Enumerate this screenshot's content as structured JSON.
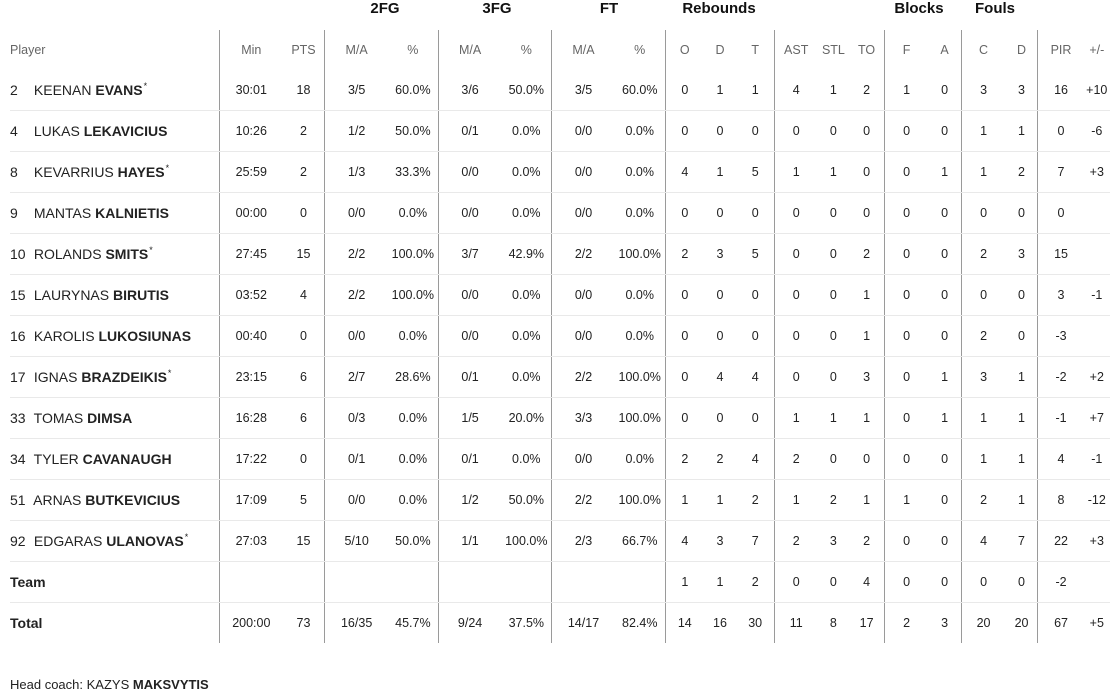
{
  "group_headers": {
    "fg2": "2FG",
    "fg3": "3FG",
    "ft": "FT",
    "rebounds": "Rebounds",
    "blocks": "Blocks",
    "fouls": "Fouls"
  },
  "columns": {
    "player": "Player",
    "min": "Min",
    "pts": "PTS",
    "fg2_ma": "M/A",
    "fg2_pct": "%",
    "fg3_ma": "M/A",
    "fg3_pct": "%",
    "ft_ma": "M/A",
    "ft_pct": "%",
    "reb_o": "O",
    "reb_d": "D",
    "reb_t": "T",
    "ast": "AST",
    "stl": "STL",
    "to": "TO",
    "blk_f": "F",
    "blk_a": "A",
    "foul_c": "C",
    "foul_d": "D",
    "pir": "PIR",
    "pm": "+/-"
  },
  "players": [
    {
      "num": "2",
      "first": "KEENAN",
      "last": "EVANS",
      "star": "*",
      "stats": [
        "30:01",
        "18",
        "3/5",
        "60.0%",
        "3/6",
        "50.0%",
        "3/5",
        "60.0%",
        "0",
        "1",
        "1",
        "4",
        "1",
        "2",
        "1",
        "0",
        "3",
        "3",
        "16",
        "+10"
      ]
    },
    {
      "num": "4",
      "first": "LUKAS",
      "last": "LEKAVICIUS",
      "star": "",
      "stats": [
        "10:26",
        "2",
        "1/2",
        "50.0%",
        "0/1",
        "0.0%",
        "0/0",
        "0.0%",
        "0",
        "0",
        "0",
        "0",
        "0",
        "0",
        "0",
        "0",
        "1",
        "1",
        "0",
        "-6"
      ]
    },
    {
      "num": "8",
      "first": "KEVARRIUS",
      "last": "HAYES",
      "star": "*",
      "stats": [
        "25:59",
        "2",
        "1/3",
        "33.3%",
        "0/0",
        "0.0%",
        "0/0",
        "0.0%",
        "4",
        "1",
        "5",
        "1",
        "1",
        "0",
        "0",
        "1",
        "1",
        "2",
        "7",
        "+3"
      ]
    },
    {
      "num": "9",
      "first": "MANTAS",
      "last": "KALNIETIS",
      "star": "",
      "stats": [
        "00:00",
        "0",
        "0/0",
        "0.0%",
        "0/0",
        "0.0%",
        "0/0",
        "0.0%",
        "0",
        "0",
        "0",
        "0",
        "0",
        "0",
        "0",
        "0",
        "0",
        "0",
        "0",
        ""
      ]
    },
    {
      "num": "10",
      "first": "ROLANDS",
      "last": "SMITS",
      "star": "*",
      "stats": [
        "27:45",
        "15",
        "2/2",
        "100.0%",
        "3/7",
        "42.9%",
        "2/2",
        "100.0%",
        "2",
        "3",
        "5",
        "0",
        "0",
        "2",
        "0",
        "0",
        "2",
        "3",
        "15",
        ""
      ]
    },
    {
      "num": "15",
      "first": "LAURYNAS",
      "last": "BIRUTIS",
      "star": "",
      "stats": [
        "03:52",
        "4",
        "2/2",
        "100.0%",
        "0/0",
        "0.0%",
        "0/0",
        "0.0%",
        "0",
        "0",
        "0",
        "0",
        "0",
        "1",
        "0",
        "0",
        "0",
        "0",
        "3",
        "-1"
      ]
    },
    {
      "num": "16",
      "first": "KAROLIS",
      "last": "LUKOSIUNAS",
      "star": "",
      "stats": [
        "00:40",
        "0",
        "0/0",
        "0.0%",
        "0/0",
        "0.0%",
        "0/0",
        "0.0%",
        "0",
        "0",
        "0",
        "0",
        "0",
        "1",
        "0",
        "0",
        "2",
        "0",
        "-3",
        ""
      ]
    },
    {
      "num": "17",
      "first": "IGNAS",
      "last": "BRAZDEIKIS",
      "star": "*",
      "stats": [
        "23:15",
        "6",
        "2/7",
        "28.6%",
        "0/1",
        "0.0%",
        "2/2",
        "100.0%",
        "0",
        "4",
        "4",
        "0",
        "0",
        "3",
        "0",
        "1",
        "3",
        "1",
        "-2",
        "+2"
      ]
    },
    {
      "num": "33",
      "first": "TOMAS",
      "last": "DIMSA",
      "star": "",
      "stats": [
        "16:28",
        "6",
        "0/3",
        "0.0%",
        "1/5",
        "20.0%",
        "3/3",
        "100.0%",
        "0",
        "0",
        "0",
        "1",
        "1",
        "1",
        "0",
        "1",
        "1",
        "1",
        "-1",
        "+7"
      ]
    },
    {
      "num": "34",
      "first": "TYLER",
      "last": "CAVANAUGH",
      "star": "",
      "stats": [
        "17:22",
        "0",
        "0/1",
        "0.0%",
        "0/1",
        "0.0%",
        "0/0",
        "0.0%",
        "2",
        "2",
        "4",
        "2",
        "0",
        "0",
        "0",
        "0",
        "1",
        "1",
        "4",
        "-1"
      ]
    },
    {
      "num": "51",
      "first": "ARNAS",
      "last": "BUTKEVICIUS",
      "star": "",
      "stats": [
        "17:09",
        "5",
        "0/0",
        "0.0%",
        "1/2",
        "50.0%",
        "2/2",
        "100.0%",
        "1",
        "1",
        "2",
        "1",
        "2",
        "1",
        "1",
        "0",
        "2",
        "1",
        "8",
        "-12"
      ]
    },
    {
      "num": "92",
      "first": "EDGARAS",
      "last": "ULANOVAS",
      "star": "*",
      "stats": [
        "27:03",
        "15",
        "5/10",
        "50.0%",
        "1/1",
        "100.0%",
        "2/3",
        "66.7%",
        "4",
        "3",
        "7",
        "2",
        "3",
        "2",
        "0",
        "0",
        "4",
        "7",
        "22",
        "+3"
      ]
    }
  ],
  "team": {
    "label": "Team",
    "stats": [
      "",
      "",
      "",
      "",
      "",
      "",
      "",
      "",
      "1",
      "1",
      "2",
      "0",
      "0",
      "4",
      "0",
      "0",
      "0",
      "0",
      "-2",
      ""
    ]
  },
  "total": {
    "label": "Total",
    "stats": [
      "200:00",
      "73",
      "16/35",
      "45.7%",
      "9/24",
      "37.5%",
      "14/17",
      "82.4%",
      "14",
      "16",
      "30",
      "11",
      "8",
      "17",
      "2",
      "3",
      "20",
      "20",
      "67",
      "+5"
    ]
  },
  "coach": {
    "label": "Head coach:",
    "first": "KAZYS",
    "last": "MAKSVYTIS"
  }
}
